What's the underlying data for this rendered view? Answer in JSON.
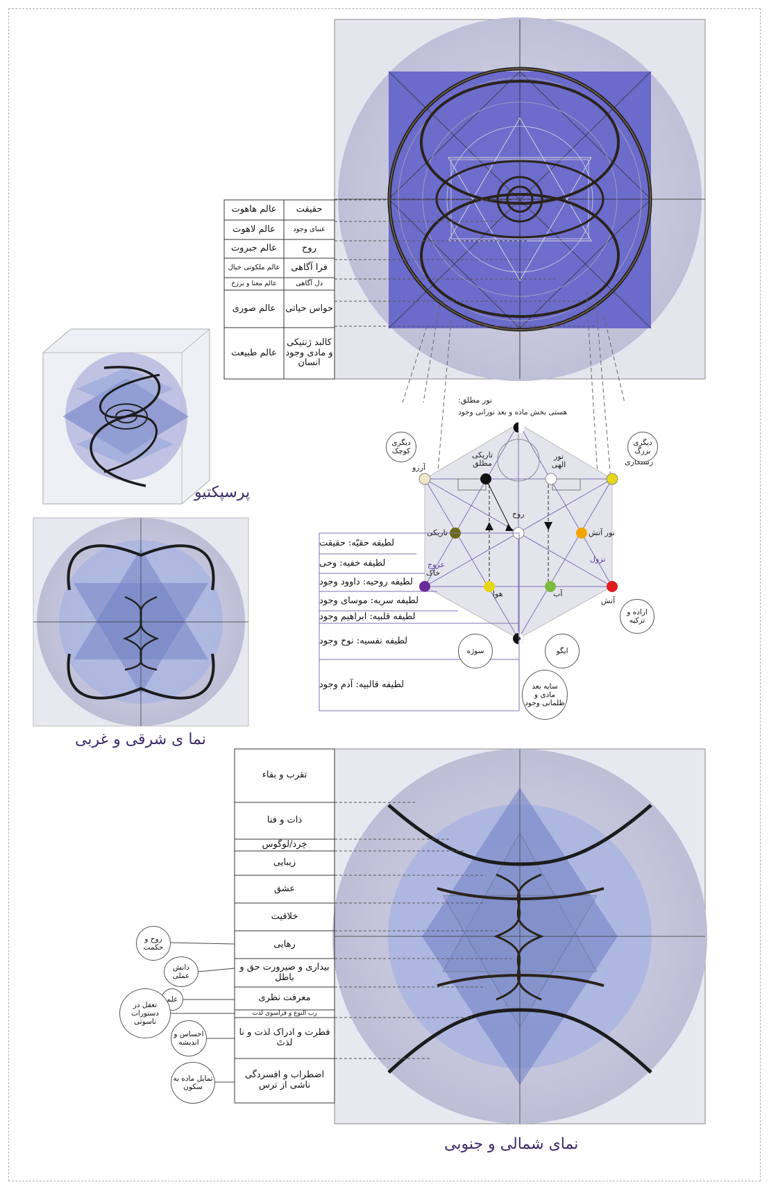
{
  "captions": {
    "perspective": "پرسپکتیو",
    "east_west": "نما ی شرقی و غربی",
    "north_south": "نمای شمالی و جنوبی"
  },
  "top_table": {
    "rows": [
      {
        "left": "عالم هاهوت",
        "right": "حقیقت"
      },
      {
        "left": "عالم لاهوت",
        "right": "عنبای وجود"
      },
      {
        "left": "عالم جبروت",
        "right": "روح"
      },
      {
        "left": "عالم ملکوتی خیال",
        "right": "فرا آگاهی"
      },
      {
        "left": "عالم معنا و برزخ",
        "right": "دل آگاهی"
      },
      {
        "left": "عالم صوری",
        "right": "حواس حیاتی"
      },
      {
        "left": "عالم طبیعت",
        "right": "کالبد ژنتیکی و مادی وجود انسان"
      }
    ]
  },
  "hexagram": {
    "top_label": "نور مطلق:",
    "top_sublabel": "هستی بخش ماده و بعد نورانی وجود",
    "labels": {
      "small_other": "دیگری کوچک",
      "big_other": "دیگری بزرگ",
      "arezoo": "آرزو",
      "rastegari": "رستگاری",
      "absolute_dark": "تاریکی مطلق",
      "divine_light": "نور الهی",
      "rooh": "روح",
      "tariki": "تاریکی",
      "noor_atash": "نور آتش",
      "orooj": "عروج",
      "nozool": "نزول",
      "khak": "خاک",
      "hava": "هوا",
      "ab": "آب",
      "atash": "آتش",
      "soozeh": "سوژه",
      "ego": "ایگو",
      "will": "اراده و تزکیه",
      "shadow": "سایه بعد مادی و ظلمانی وجود"
    }
  },
  "latifeh_table": {
    "rows": [
      "لطیفه حقیّه: حقیقت",
      "لطیفه خفیه: وحی",
      "لطیفه روحیه: داوود وجود",
      "لطیفه سریه: موسای وجود",
      "لطیفه قلبیه: ابراهیم وجود",
      "لطیفه نفسیه: نوح وجود",
      "لطیفه قالبیه: آدم وجود"
    ]
  },
  "bottom_table": {
    "rows": [
      "تقرب و بقاء",
      "ذات و فنا",
      "خِرد/لوگوس",
      "زیبایی",
      "عشق",
      "خلاقیت",
      "رهایی",
      "بیداری و صیرورت حق و باطل",
      "معرفت نظری",
      "رب النوع و فراسوی لذت",
      "فطرت و ادراک لذت و نا لذتَ",
      "اضطراب و افسردگی ناشی از ترس"
    ]
  },
  "bottom_bubbles": [
    "روح و حکمت",
    "دانش عملی",
    "علم",
    "تعقل در دستورات ناسوتی",
    "احساس و اندیشه",
    "تمایل ماده به سکون"
  ],
  "colors": {
    "violet": "#5f5fc8",
    "lilac_bg": "#c5c5dc",
    "purple_text": "#3b2a6b",
    "node_yellow": "#e6d619",
    "node_orange": "#f2a500",
    "node_red": "#e11b1b",
    "node_green": "#7dbb3e",
    "node_olive": "#6b6b17",
    "node_purple": "#6a2a9a",
    "node_cream": "#efe5c8"
  }
}
